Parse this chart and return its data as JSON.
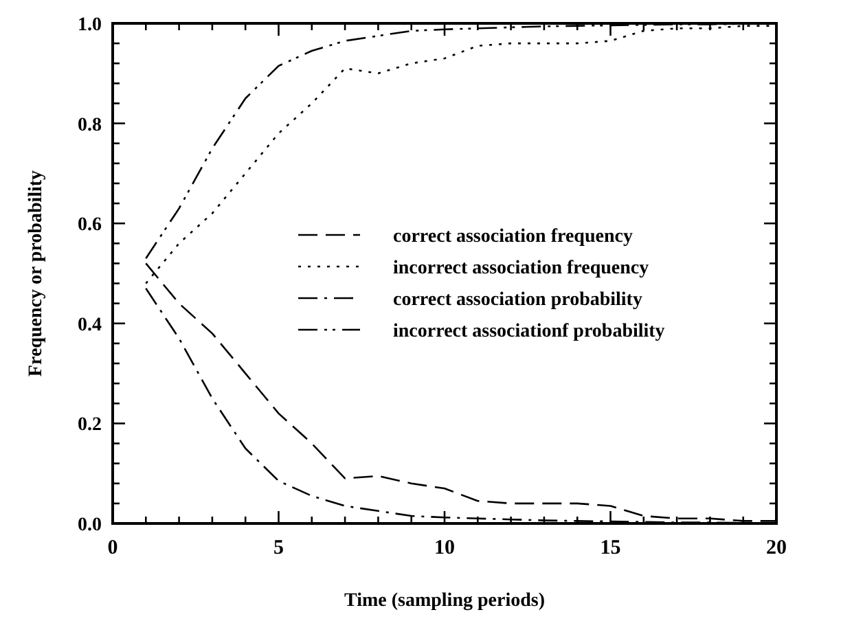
{
  "chart_data": {
    "type": "line",
    "xlabel": "Time (sampling periods)",
    "ylabel": "Frequency or probability",
    "x": [
      1,
      2,
      3,
      4,
      5,
      6,
      7,
      8,
      9,
      10,
      11,
      12,
      13,
      14,
      15,
      16,
      17,
      18,
      19,
      20
    ],
    "xlim": [
      0,
      20
    ],
    "xticks": [
      0,
      {
        "value": 1,
        "label": null
      },
      {
        "value": 2,
        "label": null
      },
      {
        "value": 3,
        "label": null
      },
      {
        "value": 4,
        "label": null
      },
      5,
      {
        "value": 6,
        "label": null
      },
      {
        "value": 7,
        "label": null
      },
      {
        "value": 8,
        "label": null
      },
      {
        "value": 9,
        "label": null
      },
      10,
      {
        "value": 11,
        "label": null
      },
      {
        "value": 12,
        "label": null
      },
      {
        "value": 13,
        "label": null
      },
      {
        "value": 14,
        "label": null
      },
      15,
      {
        "value": 16,
        "label": null
      },
      {
        "value": 17,
        "label": null
      },
      {
        "value": 18,
        "label": null
      },
      {
        "value": 19,
        "label": null
      },
      20
    ],
    "ylim": [
      0,
      1
    ],
    "yticks": [
      {
        "value": 0,
        "label": "0.0"
      },
      {
        "value": 0.04,
        "label": null
      },
      {
        "value": 0.08,
        "label": null
      },
      {
        "value": 0.12,
        "label": null
      },
      {
        "value": 0.16,
        "label": null
      },
      {
        "value": 0.2,
        "label": "0.2"
      },
      {
        "value": 0.24,
        "label": null
      },
      {
        "value": 0.28,
        "label": null
      },
      {
        "value": 0.32,
        "label": null
      },
      {
        "value": 0.36,
        "label": null
      },
      {
        "value": 0.4,
        "label": "0.4"
      },
      {
        "value": 0.44,
        "label": null
      },
      {
        "value": 0.48,
        "label": null
      },
      {
        "value": 0.52,
        "label": null
      },
      {
        "value": 0.56,
        "label": null
      },
      {
        "value": 0.6,
        "label": "0.6"
      },
      {
        "value": 0.64,
        "label": null
      },
      {
        "value": 0.68,
        "label": null
      },
      {
        "value": 0.72,
        "label": null
      },
      {
        "value": 0.76,
        "label": null
      },
      {
        "value": 0.8,
        "label": "0.8"
      },
      {
        "value": 0.84,
        "label": null
      },
      {
        "value": 0.88,
        "label": null
      },
      {
        "value": 0.92,
        "label": null
      },
      {
        "value": 0.96,
        "label": null
      },
      {
        "value": 1,
        "label": "1.0"
      }
    ],
    "legend": "center right",
    "grid": false,
    "marker": "none",
    "series": [
      {
        "name": "correct association frequency",
        "color": "#000000",
        "line_style": "dashed",
        "values": [
          0.52,
          0.44,
          0.38,
          0.3,
          0.22,
          0.16,
          0.09,
          0.095,
          0.08,
          0.07,
          0.045,
          0.04,
          0.04,
          0.04,
          0.035,
          0.015,
          0.01,
          0.01,
          0.005,
          0.005
        ]
      },
      {
        "name": "incorrect association frequency",
        "color": "#000000",
        "line_style": "dotted",
        "values": [
          0.48,
          0.56,
          0.62,
          0.7,
          0.78,
          0.84,
          0.91,
          0.9,
          0.92,
          0.93,
          0.955,
          0.96,
          0.96,
          0.96,
          0.965,
          0.985,
          0.99,
          0.99,
          0.995,
          0.995
        ]
      },
      {
        "name": "correct association probability",
        "color": "#000000",
        "line_style": "dashdot",
        "values": [
          0.47,
          0.37,
          0.25,
          0.15,
          0.085,
          0.055,
          0.035,
          0.025,
          0.015,
          0.012,
          0.01,
          0.008,
          0.006,
          0.005,
          0.004,
          0.003,
          0.002,
          0.002,
          0.001,
          0.001
        ]
      },
      {
        "name": "incorrect associationf probability",
        "color": "#000000",
        "line_style": "dashdotdot",
        "values": [
          0.53,
          0.63,
          0.75,
          0.85,
          0.915,
          0.945,
          0.965,
          0.975,
          0.985,
          0.988,
          0.99,
          0.992,
          0.994,
          0.995,
          0.996,
          0.997,
          0.998,
          0.998,
          0.999,
          0.999
        ]
      }
    ]
  }
}
